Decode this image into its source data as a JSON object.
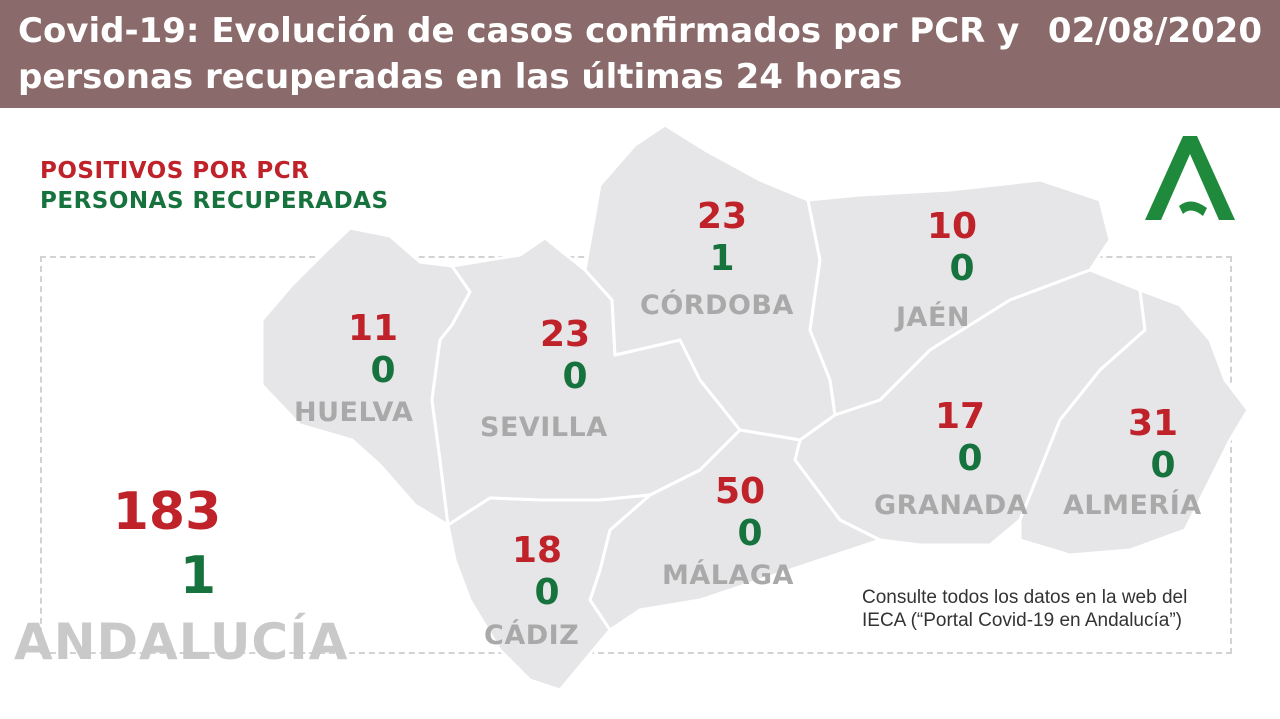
{
  "header": {
    "title": "Covid-19: Evolución de casos confirmados por PCR y personas recuperadas en las últimas 24 horas",
    "date": "02/08/2020"
  },
  "legend": {
    "positives": "POSITIVOS POR PCR",
    "recovered": "PERSONAS RECUPERADAS"
  },
  "totals": {
    "positives": "183",
    "recovered": "1",
    "region": "ANDALUCÍA"
  },
  "provinces": [
    {
      "name": "HUELVA",
      "positives": "11",
      "recovered": "0"
    },
    {
      "name": "SEVILLA",
      "positives": "23",
      "recovered": "0"
    },
    {
      "name": "CÓRDOBA",
      "positives": "23",
      "recovered": "1"
    },
    {
      "name": "JAÉN",
      "positives": "10",
      "recovered": "0"
    },
    {
      "name": "GRANADA",
      "positives": "17",
      "recovered": "0"
    },
    {
      "name": "ALMERÍA",
      "positives": "31",
      "recovered": "0"
    },
    {
      "name": "MÁLAGA",
      "positives": "50",
      "recovered": "0"
    },
    {
      "name": "CÁDIZ",
      "positives": "18",
      "recovered": "0"
    }
  ],
  "note": "Consulte todos los datos en la web del IECA (“Portal Covid-19 en Andalucía”)",
  "colors": {
    "header": "#8a6a6a",
    "positives": "#c0222a",
    "recovered": "#17733d",
    "map_fill": "#e6e6e8",
    "logo": "#1f8a3c"
  }
}
